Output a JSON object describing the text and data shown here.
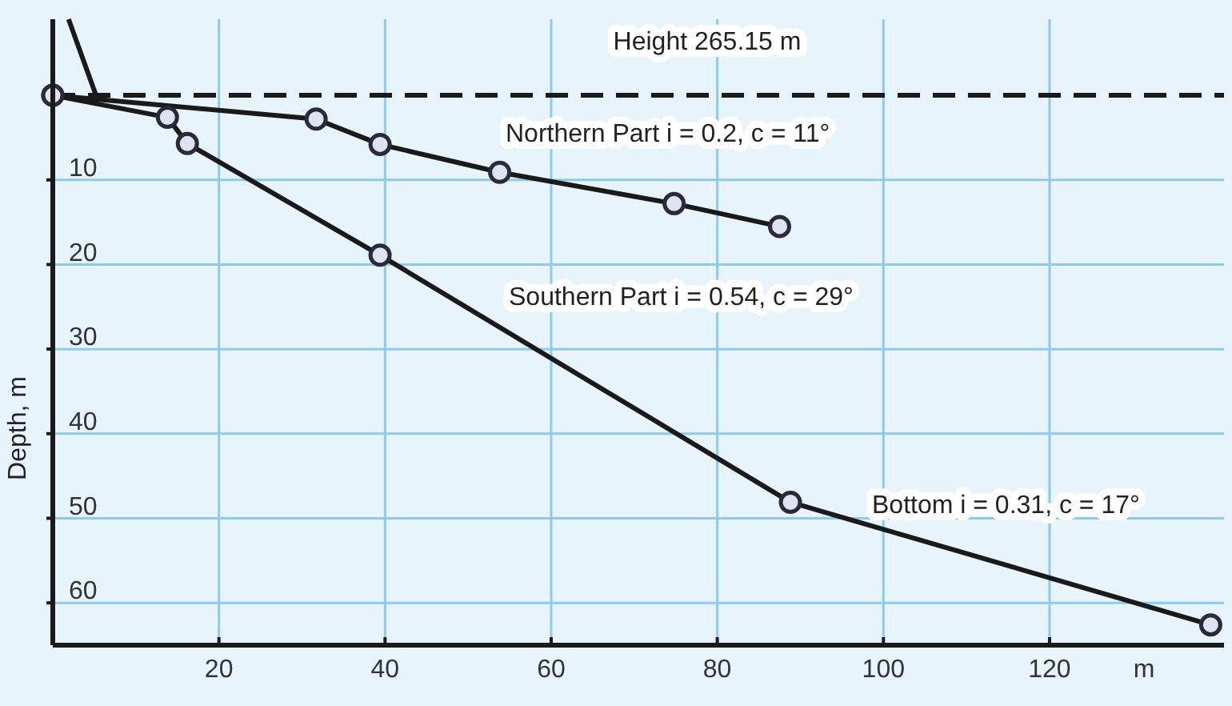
{
  "chart_data": {
    "type": "line",
    "xlabel": "m",
    "ylabel": "Depth, m",
    "xlim": [
      0,
      141
    ],
    "xticks": [
      20,
      40,
      60,
      80,
      100,
      120
    ],
    "ylim": [
      65,
      -9
    ],
    "yticks": [
      10,
      20,
      30,
      40,
      50,
      60
    ],
    "grid": true,
    "marker": "circle",
    "line_style": "solid",
    "series": [
      {
        "color": "#1a1a1a",
        "x": [
          0,
          31.7,
          39.4,
          53.8,
          74.8,
          87.5
        ],
        "values": [
          0,
          2.8,
          5.8,
          9.1,
          12.8,
          15.5
        ]
      },
      {
        "color": "#1a1a1a",
        "x": [
          0,
          13.8,
          16.2,
          39.4,
          88.8,
          139.4
        ],
        "values": [
          0,
          2.6,
          5.7,
          18.9,
          48.1,
          62.6
        ]
      },
      {
        "color": "#1a1a1a",
        "marker": "none",
        "x": [
          1.9,
          5.2
        ],
        "values": [
          -9,
          0
        ]
      }
    ],
    "ref_lines": [
      {
        "axis": "y",
        "value": 0,
        "label": "Height 265.15 m",
        "color": "#1a1a1a",
        "line_style": "dashed"
      }
    ],
    "annotations": [
      "Northern Part i = 0.2, c = 11°",
      "Southern Part i = 0.54, c = 29°",
      "Bottom i = 0.31, c = 17°"
    ]
  }
}
